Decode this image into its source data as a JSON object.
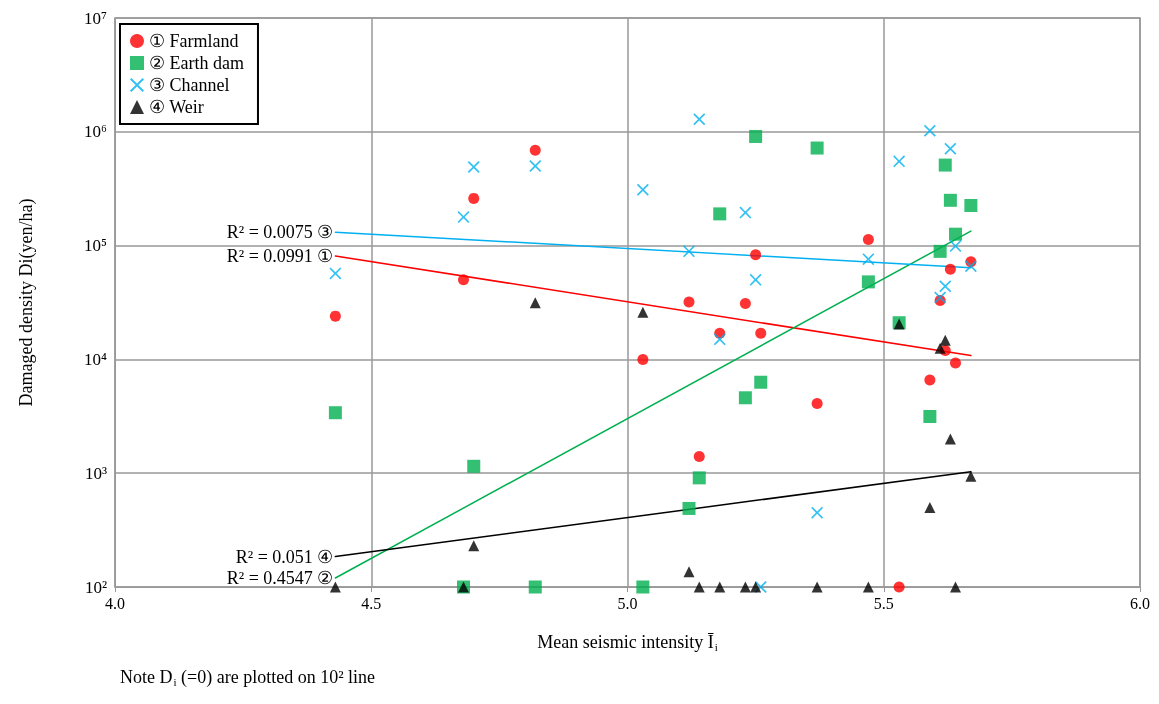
{
  "chart_data": {
    "type": "scatter",
    "xlabel": "Mean seismic intensity Ī$_{i}$",
    "ylabel": "Damaged density Di(yen/ha)",
    "xlim": [
      4,
      6
    ],
    "xticks": [
      {
        "value": 4,
        "label": "4.0"
      },
      {
        "value": 4.5,
        "label": "4.5"
      },
      {
        "value": 5,
        "label": "5.0"
      },
      {
        "value": 5.5,
        "label": "5.5"
      },
      {
        "value": 6,
        "label": "6.0"
      }
    ],
    "ylim": [
      100,
      10000000
    ],
    "yticks": [
      {
        "value": 100,
        "label": "10²"
      },
      {
        "value": 1000,
        "label": "10³"
      },
      {
        "value": 10000,
        "label": "10⁴"
      },
      {
        "value": 100000,
        "label": "10⁵"
      },
      {
        "value": 1000000,
        "label": "10⁶"
      },
      {
        "value": 10000000,
        "label": "10⁷"
      }
    ],
    "log": "y",
    "grid": true,
    "legend": "top left",
    "series": [
      {
        "name": "① Farmland",
        "color": "#ff0000",
        "marker": "circle",
        "x": [
          4.43,
          4.68,
          4.7,
          4.82,
          5.03,
          5.12,
          5.14,
          5.18,
          5.23,
          5.25,
          5.26,
          5.37,
          5.47,
          5.53,
          5.59,
          5.61,
          5.62,
          5.63,
          5.64,
          5.67
        ],
        "values": [
          24000,
          50000,
          260000,
          690000,
          10000,
          32000,
          1400,
          17000,
          31000,
          83000,
          17000,
          4100,
          113000,
          100,
          6600,
          33000,
          12000,
          62000,
          9300,
          72000
        ]
      },
      {
        "name": "② Earth dam",
        "color": "#00b050",
        "marker": "square",
        "x": [
          4.43,
          4.68,
          4.7,
          4.82,
          5.03,
          5.12,
          5.14,
          5.18,
          5.23,
          5.25,
          5.26,
          5.37,
          5.47,
          5.53,
          5.59,
          5.61,
          5.62,
          5.63,
          5.64,
          5.67
        ],
        "values": [
          3400,
          100,
          1150,
          100,
          100,
          490,
          910,
          190000,
          4600,
          910000,
          6300,
          720000,
          48000,
          21000,
          3150,
          89000,
          510000,
          250000,
          126000,
          225000
        ]
      },
      {
        "name": "③ Channel",
        "color": "#00b0f0",
        "marker": "cross",
        "x": [
          4.43,
          4.68,
          4.7,
          4.82,
          5.03,
          5.12,
          5.14,
          5.18,
          5.23,
          5.25,
          5.26,
          5.37,
          5.47,
          5.53,
          5.59,
          5.61,
          5.62,
          5.63,
          5.64,
          5.67
        ],
        "values": [
          57000,
          178000,
          490000,
          500000,
          310000,
          89000,
          1290000,
          15000,
          195000,
          50000,
          100,
          450,
          76000,
          550000,
          1020000,
          35000,
          44000,
          710000,
          99000,
          66000
        ]
      },
      {
        "name": "④ Weir",
        "color": "#000000",
        "marker": "triangle",
        "x": [
          4.43,
          4.68,
          4.7,
          4.82,
          5.03,
          5.12,
          5.14,
          5.18,
          5.23,
          5.25,
          5.37,
          5.47,
          5.53,
          5.59,
          5.61,
          5.62,
          5.63,
          5.64,
          5.67
        ],
        "values": [
          100,
          100,
          230,
          31500,
          26000,
          136,
          100,
          100,
          100,
          100,
          100,
          100,
          20500,
          500,
          12500,
          14700,
          2000,
          100,
          940
        ]
      },
      {
        "name": "R² = 0.0991 ①",
        "type": "line",
        "color": "#ff0000",
        "marker": "none",
        "x": [
          4.43,
          5.67
        ],
        "values": [
          81000,
          10800
        ]
      },
      {
        "name": "R² = 0.4547 ②",
        "type": "line",
        "color": "#00b050",
        "marker": "none",
        "x": [
          4.43,
          5.67
        ],
        "values": [
          120,
          134000
        ]
      },
      {
        "name": "R² = 0.0075 ③",
        "type": "line",
        "color": "#00b0f0",
        "marker": "none",
        "x": [
          4.43,
          5.67
        ],
        "values": [
          131000,
          64000
        ]
      },
      {
        "name": "R² = 0.051 ④",
        "type": "line",
        "color": "#000000",
        "marker": "none",
        "x": [
          4.43,
          5.67
        ],
        "values": [
          185,
          1030
        ]
      }
    ],
    "annotations": [
      "Note D$_{i}$ (=0) are plotted on 10² line"
    ]
  }
}
